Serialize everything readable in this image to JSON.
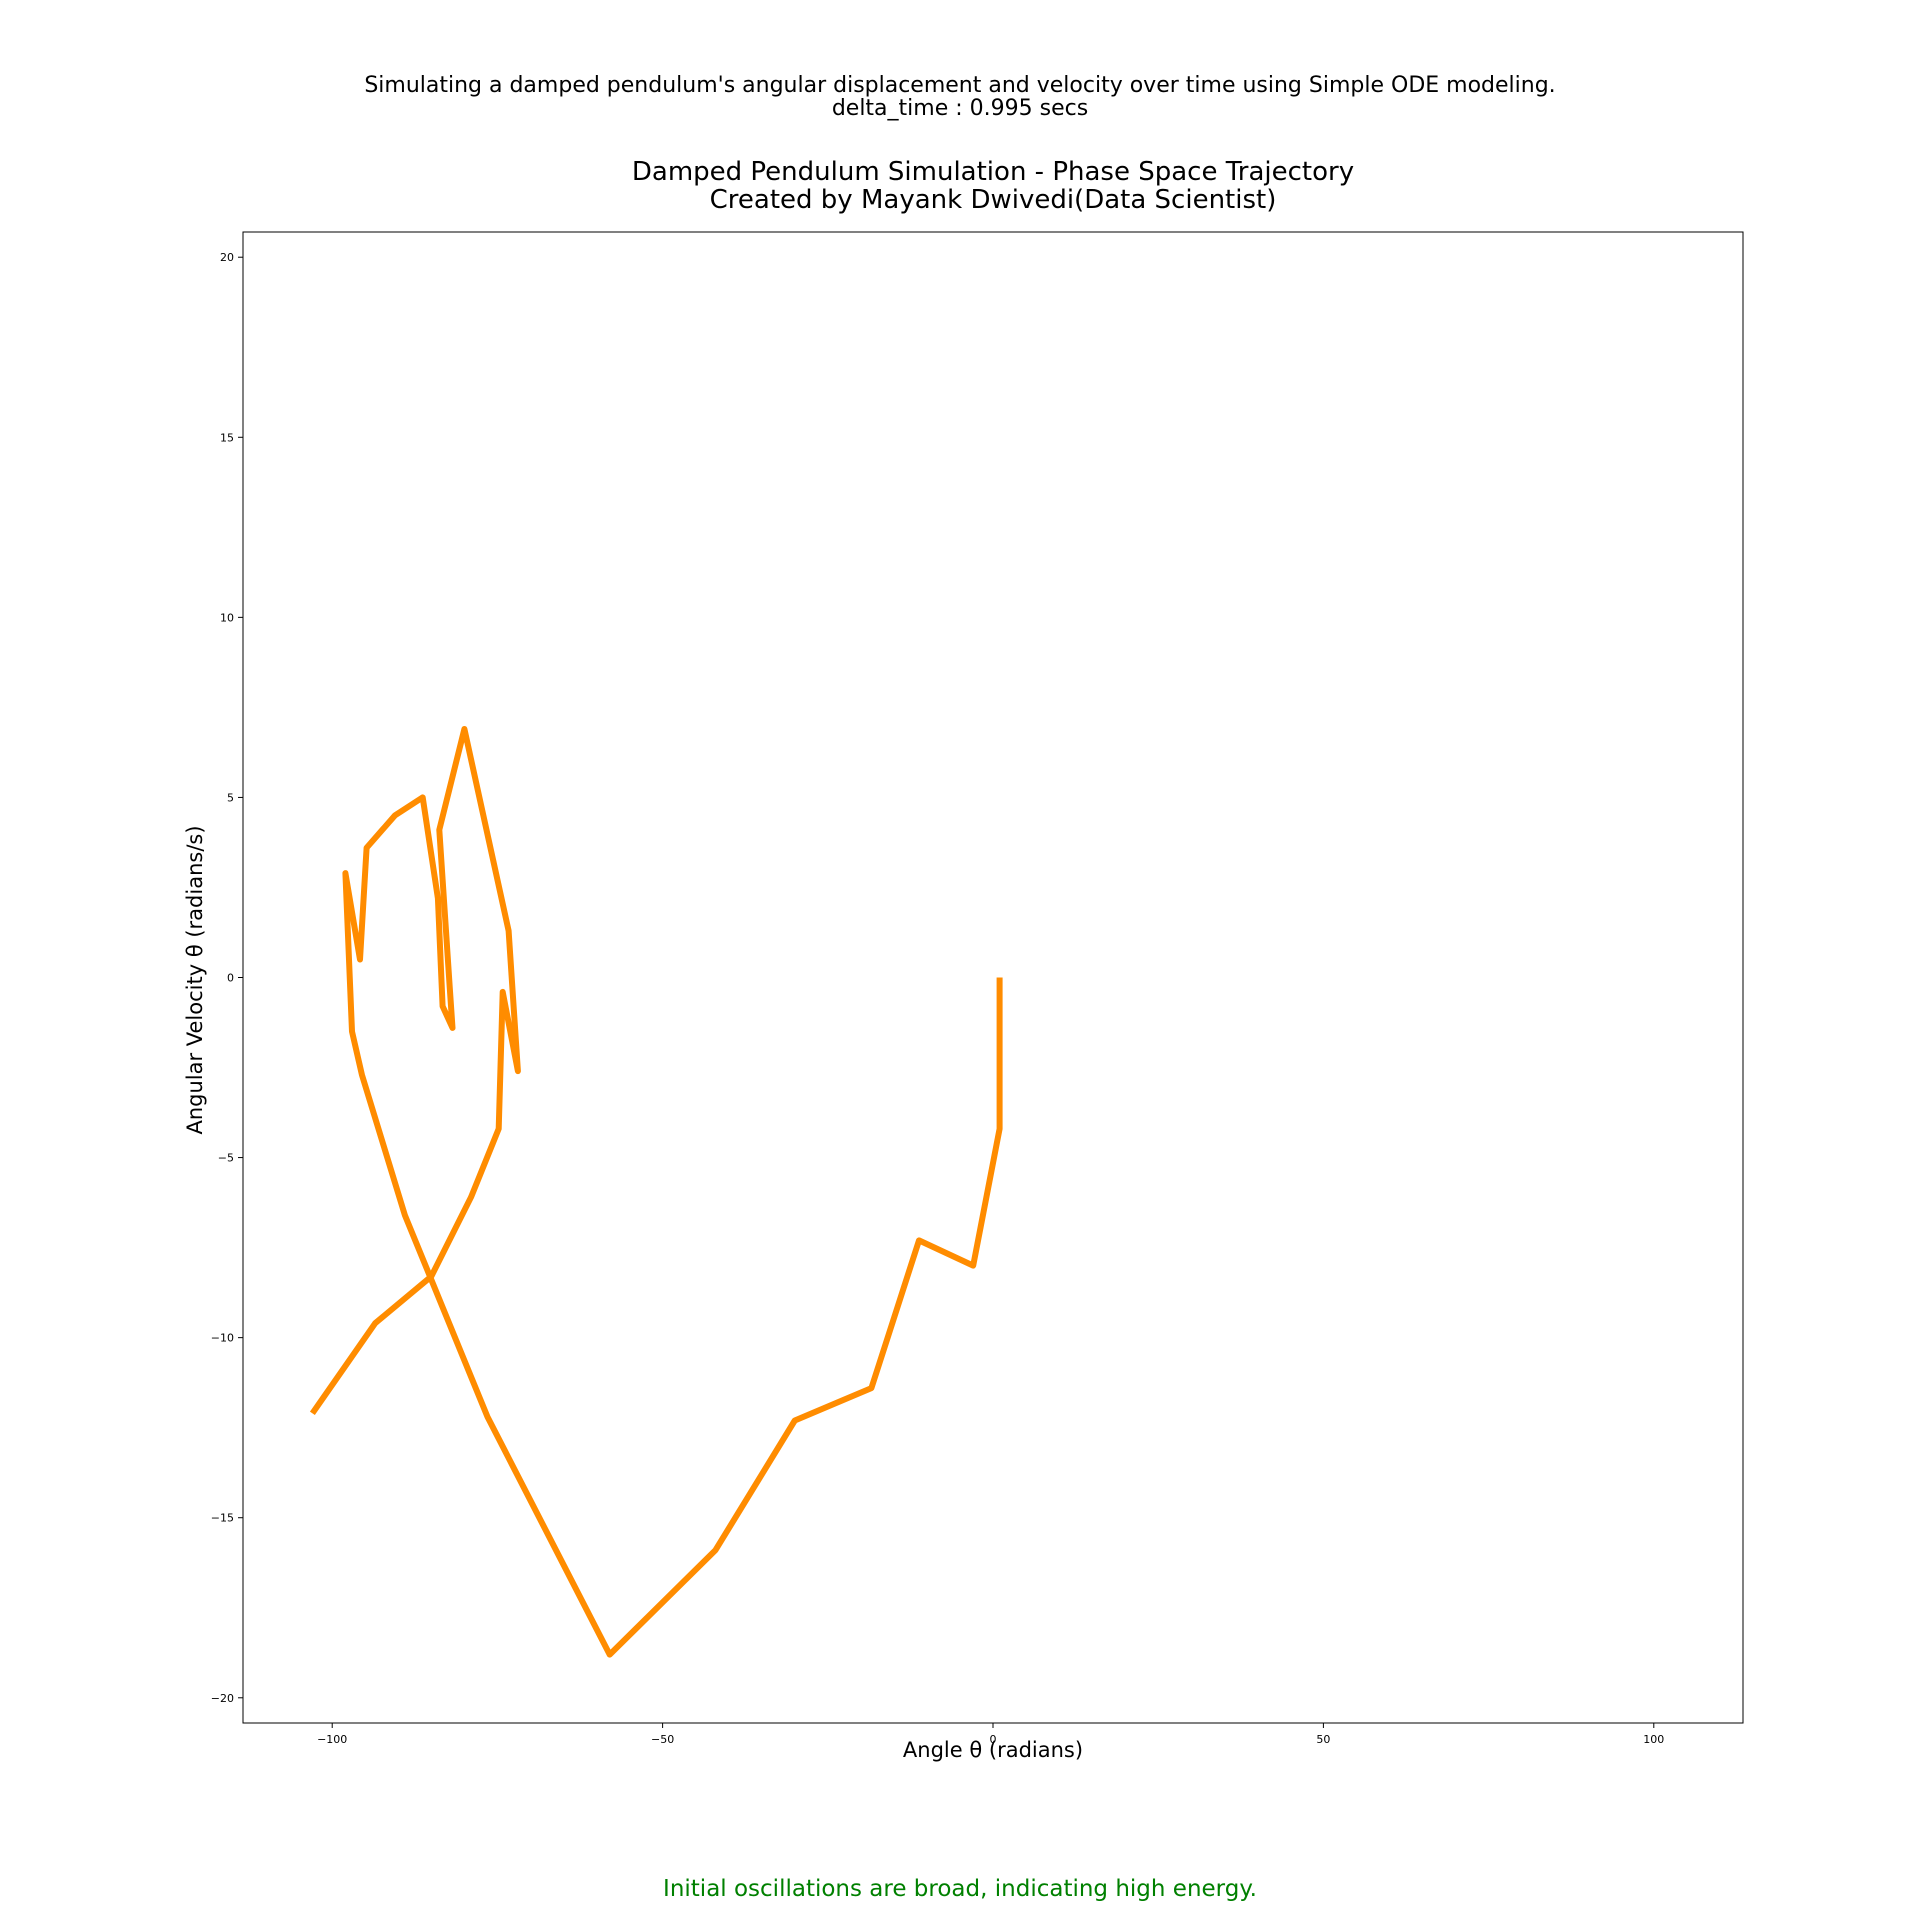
{
  "figure": {
    "suptitle_line1": "Simulating a damped pendulum's angular displacement and velocity over time using Simple ODE modeling.",
    "suptitle_line2": "delta_time : 0.995 secs",
    "annotation": "Initial oscillations are broad, indicating high energy.",
    "annotation_color": "#008000"
  },
  "chart_data": {
    "type": "line",
    "title_line1": "Damped Pendulum Simulation - Phase Space Trajectory",
    "title_line2": "Created by Mayank Dwivedi(Data Scientist)",
    "xlabel": "Angle θ (radians)",
    "ylabel": "Angular Velocity θ (radians/s)",
    "xlim": [
      -113.5,
      113.5
    ],
    "ylim": [
      -20.7,
      20.7
    ],
    "xticks": [
      -100,
      -50,
      0,
      50,
      100
    ],
    "xtick_labels": [
      "−100",
      "−50",
      "0",
      "50",
      "100"
    ],
    "yticks": [
      20,
      15,
      10,
      5,
      0,
      -5,
      -10,
      -15,
      -20
    ],
    "ytick_labels": [
      "20",
      "15",
      "10",
      "5",
      "0",
      "−5",
      "−10",
      "−15",
      "−20"
    ],
    "grid": false,
    "series": [
      {
        "color": "#ff8c00",
        "x": [
          1.0,
          1.0,
          -3.0,
          -11.2,
          -18.4,
          -30.0,
          -42.0,
          -58.0,
          -76.5,
          -89.0,
          -95.5,
          -97.0,
          -98.0,
          -95.8,
          -94.8,
          -90.5,
          -86.3,
          -84.0,
          -83.3,
          -81.8,
          -82.2,
          -83.8,
          -80.0,
          -73.3,
          -71.9,
          -74.2,
          -74.8,
          -79.0,
          -85.0,
          -93.5,
          -103.0
        ],
        "y": [
          0.0,
          -4.2,
          -8.0,
          -7.3,
          -11.4,
          -12.3,
          -15.9,
          -18.8,
          -12.2,
          -6.6,
          -2.7,
          -1.5,
          2.9,
          0.5,
          3.6,
          4.5,
          5.0,
          2.2,
          -0.8,
          -1.4,
          -0.3,
          4.1,
          6.9,
          1.3,
          -2.6,
          -0.4,
          -4.2,
          -6.1,
          -8.3,
          -9.6,
          -12.1
        ]
      }
    ]
  }
}
